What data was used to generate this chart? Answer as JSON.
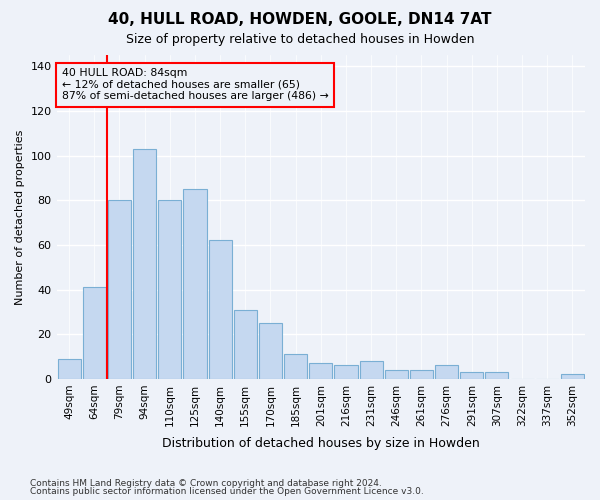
{
  "title1": "40, HULL ROAD, HOWDEN, GOOLE, DN14 7AT",
  "title2": "Size of property relative to detached houses in Howden",
  "xlabel": "Distribution of detached houses by size in Howden",
  "ylabel": "Number of detached properties",
  "categories": [
    "49sqm",
    "64sqm",
    "79sqm",
    "94sqm",
    "110sqm",
    "125sqm",
    "140sqm",
    "155sqm",
    "170sqm",
    "185sqm",
    "201sqm",
    "216sqm",
    "231sqm",
    "246sqm",
    "261sqm",
    "276sqm",
    "291sqm",
    "307sqm",
    "322sqm",
    "337sqm",
    "352sqm"
  ],
  "bar_values": [
    9,
    41,
    80,
    103,
    80,
    85,
    62,
    31,
    25,
    11,
    7,
    6,
    8,
    4,
    4,
    6,
    3,
    3,
    0,
    0,
    2
  ],
  "bar_color": "#c5d8f0",
  "bar_edgecolor": "#7aafd4",
  "vline_color": "red",
  "annotation_box_text": "40 HULL ROAD: 84sqm\n← 12% of detached houses are smaller (65)\n87% of semi-detached houses are larger (486) →",
  "annotation_box_color": "red",
  "background_color": "#eef2f9",
  "grid_color": "#ffffff",
  "ylim": [
    0,
    145
  ],
  "yticks": [
    0,
    20,
    40,
    60,
    80,
    100,
    120,
    140
  ],
  "footer1": "Contains HM Land Registry data © Crown copyright and database right 2024.",
  "footer2": "Contains public sector information licensed under the Open Government Licence v3.0."
}
